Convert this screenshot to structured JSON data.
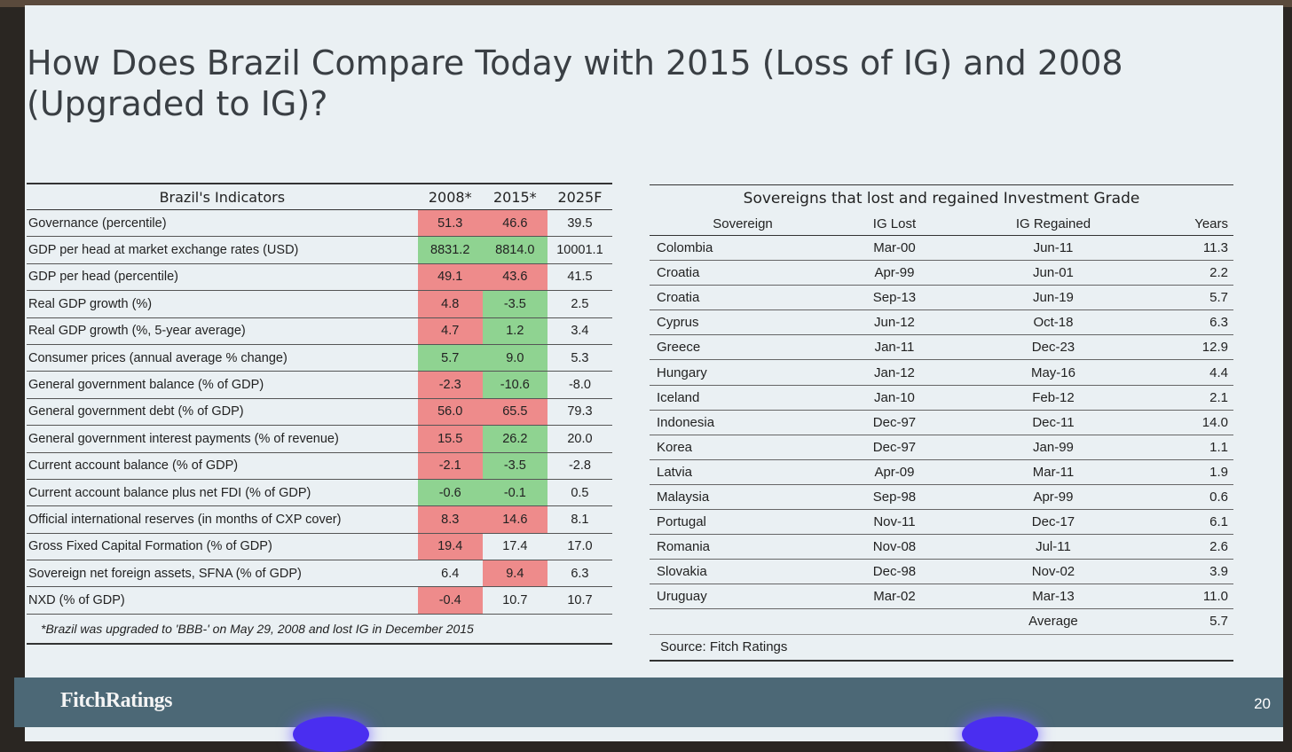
{
  "title": "How Does Brazil Compare Today with 2015 (Loss of IG) and 2008 (Upgraded to IG)?",
  "left_table": {
    "headers": [
      "Brazil's Indicators",
      "2008*",
      "2015*",
      "2025F"
    ],
    "rows": [
      {
        "label": "Governance (percentile)",
        "v": [
          "51.3",
          "46.6",
          "39.5"
        ],
        "c": [
          "red",
          "red",
          ""
        ]
      },
      {
        "label": "GDP per head at market exchange rates (USD)",
        "v": [
          "8831.2",
          "8814.0",
          "10001.1"
        ],
        "c": [
          "green",
          "green",
          ""
        ]
      },
      {
        "label": "GDP per head (percentile)",
        "v": [
          "49.1",
          "43.6",
          "41.5"
        ],
        "c": [
          "red",
          "red",
          ""
        ]
      },
      {
        "label": "Real GDP growth (%)",
        "v": [
          "4.8",
          "-3.5",
          "2.5"
        ],
        "c": [
          "red",
          "green",
          ""
        ]
      },
      {
        "label": "Real GDP growth (%, 5-year average)",
        "v": [
          "4.7",
          "1.2",
          "3.4"
        ],
        "c": [
          "red",
          "green",
          ""
        ]
      },
      {
        "label": "Consumer prices (annual average % change)",
        "v": [
          "5.7",
          "9.0",
          "5.3"
        ],
        "c": [
          "green",
          "green",
          ""
        ]
      },
      {
        "label": "General government balance (% of GDP)",
        "v": [
          "-2.3",
          "-10.6",
          "-8.0"
        ],
        "c": [
          "red",
          "green",
          ""
        ]
      },
      {
        "label": "General government debt (% of GDP)",
        "v": [
          "56.0",
          "65.5",
          "79.3"
        ],
        "c": [
          "red",
          "red",
          ""
        ]
      },
      {
        "label": "General government interest payments (% of revenue)",
        "v": [
          "15.5",
          "26.2",
          "20.0"
        ],
        "c": [
          "red",
          "green",
          ""
        ]
      },
      {
        "label": "Current account balance (% of GDP)",
        "v": [
          "-2.1",
          "-3.5",
          "-2.8"
        ],
        "c": [
          "red",
          "green",
          ""
        ]
      },
      {
        "label": "Current account balance plus net FDI (% of GDP)",
        "v": [
          "-0.6",
          "-0.1",
          "0.5"
        ],
        "c": [
          "green",
          "green",
          ""
        ]
      },
      {
        "label": "Official international reserves (in months of CXP cover)",
        "v": [
          "8.3",
          "14.6",
          "8.1"
        ],
        "c": [
          "red",
          "red",
          ""
        ]
      },
      {
        "label": "Gross Fixed Capital Formation (% of GDP)",
        "v": [
          "19.4",
          "17.4",
          "17.0"
        ],
        "c": [
          "red",
          "",
          ""
        ]
      },
      {
        "label": "Sovereign net foreign assets, SFNA (% of GDP)",
        "v": [
          "6.4",
          "9.4",
          "6.3"
        ],
        "c": [
          "",
          "red",
          ""
        ]
      },
      {
        "label": "NXD (% of GDP)",
        "v": [
          "-0.4",
          "10.7",
          "10.7"
        ],
        "c": [
          "red",
          "",
          ""
        ]
      }
    ],
    "note": "*Brazil was upgraded to 'BBB-' on May 29, 2008 and lost IG in December 2015"
  },
  "right_table": {
    "caption": "Sovereigns that lost and regained Investment Grade",
    "headers": [
      "Sovereign",
      "IG Lost",
      "IG Regained",
      "Years"
    ],
    "rows": [
      [
        "Colombia",
        "Mar-00",
        "Jun-11",
        "11.3"
      ],
      [
        "Croatia",
        "Apr-99",
        "Jun-01",
        "2.2"
      ],
      [
        "Croatia",
        "Sep-13",
        "Jun-19",
        "5.7"
      ],
      [
        "Cyprus",
        "Jun-12",
        "Oct-18",
        "6.3"
      ],
      [
        "Greece",
        "Jan-11",
        "Dec-23",
        "12.9"
      ],
      [
        "Hungary",
        "Jan-12",
        "May-16",
        "4.4"
      ],
      [
        "Iceland",
        "Jan-10",
        "Feb-12",
        "2.1"
      ],
      [
        "Indonesia",
        "Dec-97",
        "Dec-11",
        "14.0"
      ],
      [
        "Korea",
        "Dec-97",
        "Jan-99",
        "1.1"
      ],
      [
        "Latvia",
        "Apr-09",
        "Mar-11",
        "1.9"
      ],
      [
        "Malaysia",
        "Sep-98",
        "Apr-99",
        "0.6"
      ],
      [
        "Portugal",
        "Nov-11",
        "Dec-17",
        "6.1"
      ],
      [
        "Romania",
        "Nov-08",
        "Jul-11",
        "2.6"
      ],
      [
        "Slovakia",
        "Dec-98",
        "Nov-02",
        "3.9"
      ],
      [
        "Uruguay",
        "Mar-02",
        "Mar-13",
        "11.0"
      ]
    ],
    "average_label": "Average",
    "average_value": "5.7",
    "source": "Source: Fitch Ratings"
  },
  "footer": {
    "brand": "FitchRatings",
    "page": "20"
  },
  "colors": {
    "red": "#ee8b8b",
    "green": "#8fd391",
    "footer": "#4c6876"
  }
}
